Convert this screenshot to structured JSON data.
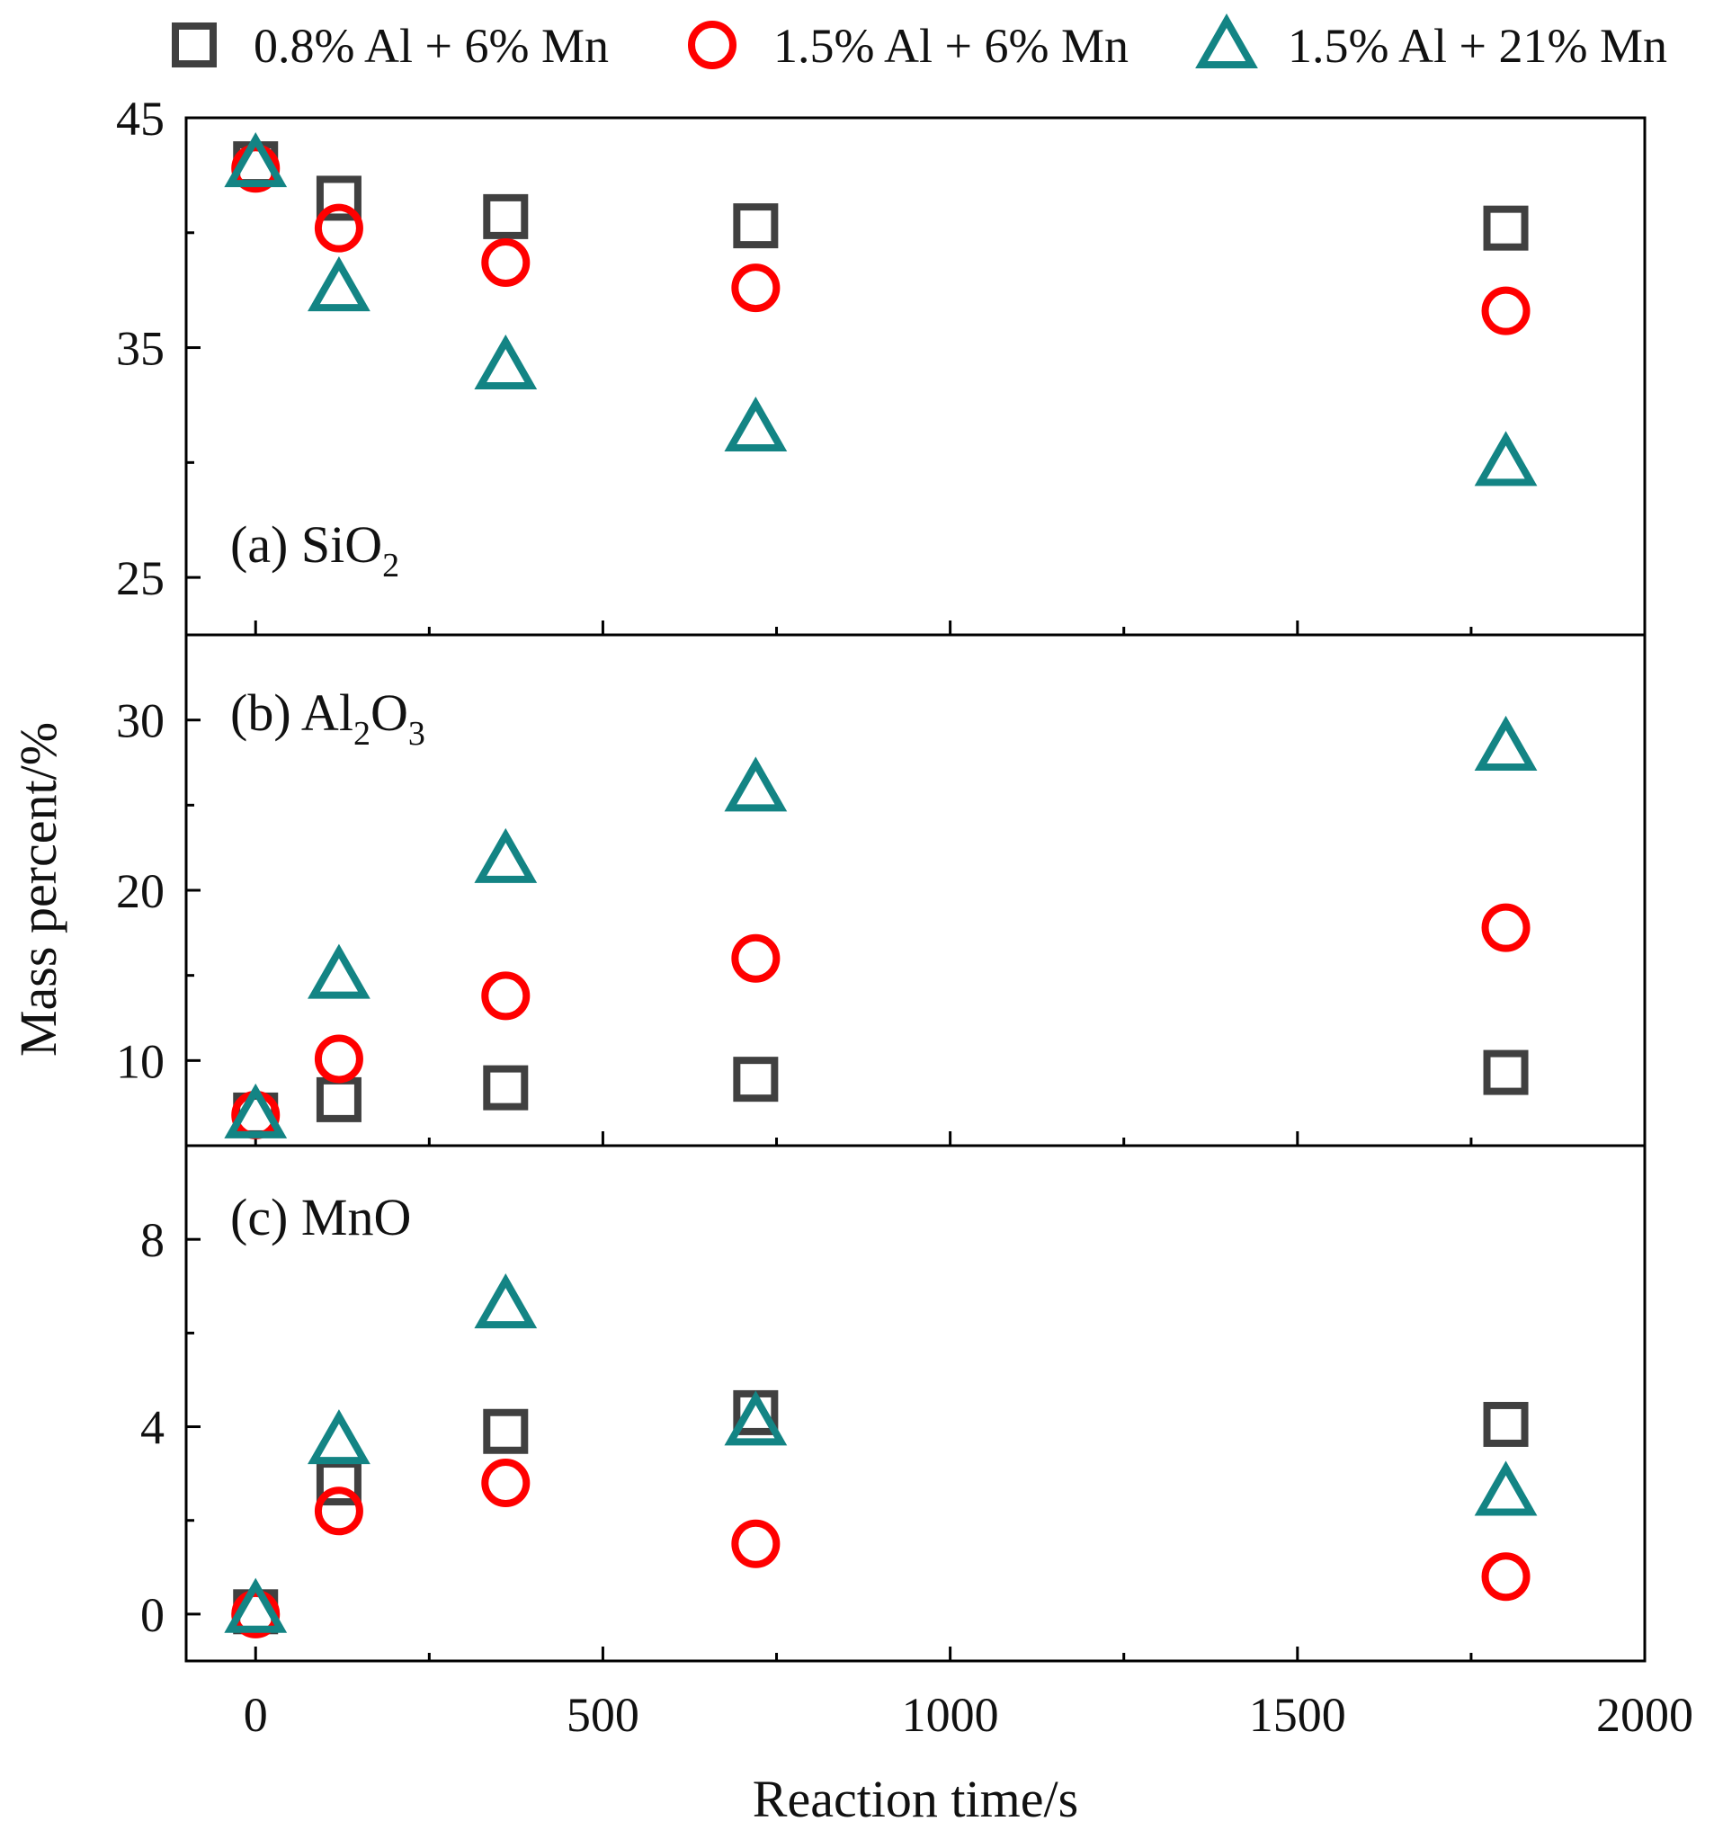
{
  "chart_data": {
    "type": "scatter",
    "xlabel": "Reaction time/s",
    "ylabel": "Mass percent/%",
    "xlim": [
      -100,
      2000
    ],
    "xticks": [
      "0",
      "500",
      "1000",
      "1500",
      "2000"
    ],
    "legend": {
      "placement": "top",
      "entries": [
        "0.8% Al + 6% Mn",
        "1.5% Al + 6% Mn",
        "1.5% Al + 21% Mn"
      ]
    },
    "series_styles": [
      {
        "name": "0.8% Al + 6% Mn",
        "marker": "square",
        "color": "#404040"
      },
      {
        "name": "1.5% Al + 6% Mn",
        "marker": "circle",
        "color": "#ff0000"
      },
      {
        "name": "1.5% Al + 21% Mn",
        "marker": "triangle",
        "color": "#138484"
      }
    ],
    "x": [
      0,
      120,
      360,
      720,
      1800
    ],
    "panels": [
      {
        "id": "a",
        "label_prefix": "(a) SiO",
        "label_sub": "2",
        "label_suffix": "",
        "label_tail": "",
        "ylim": [
          22.5,
          45
        ],
        "yticks": [
          "25",
          "35",
          "45"
        ],
        "series": [
          {
            "name": "0.8% Al + 6% Mn",
            "values": [
              43.0,
              41.5,
              40.7,
              40.3,
              40.2
            ]
          },
          {
            "name": "1.5% Al + 6% Mn",
            "values": [
              42.8,
              40.2,
              38.7,
              37.6,
              36.6
            ]
          },
          {
            "name": "1.5% Al + 21% Mn",
            "values": [
              43.0,
              37.6,
              34.2,
              31.5,
              30.0
            ]
          }
        ]
      },
      {
        "id": "b",
        "label_prefix": "(b) Al",
        "label_sub": "2",
        "label_suffix": "O",
        "label_tail": "3",
        "ylim": [
          5,
          35
        ],
        "yticks": [
          "10",
          "20",
          "30"
        ],
        "series": [
          {
            "name": "0.8% Al + 6% Mn",
            "values": [
              6.8,
              7.7,
              8.4,
              8.9,
              9.3
            ]
          },
          {
            "name": "1.5% Al + 6% Mn",
            "values": [
              6.8,
              10.1,
              13.8,
              16.0,
              17.8
            ]
          },
          {
            "name": "1.5% Al + 21% Mn",
            "values": [
              6.8,
              15.0,
              21.8,
              26.0,
              28.4
            ]
          }
        ]
      },
      {
        "id": "c",
        "label_prefix": "(c) MnO",
        "label_sub": "",
        "label_suffix": "",
        "label_tail": "",
        "ylim": [
          -1,
          10
        ],
        "yticks": [
          "0",
          "4",
          "8"
        ],
        "series": [
          {
            "name": "0.8% Al + 6% Mn",
            "values": [
              0.05,
              2.8,
              3.9,
              4.3,
              4.05
            ]
          },
          {
            "name": "1.5% Al + 6% Mn",
            "values": [
              0.0,
              2.2,
              2.8,
              1.5,
              0.8
            ]
          },
          {
            "name": "1.5% Al + 21% Mn",
            "values": [
              0.1,
              3.7,
              6.6,
              4.1,
              2.6
            ]
          }
        ]
      }
    ]
  }
}
